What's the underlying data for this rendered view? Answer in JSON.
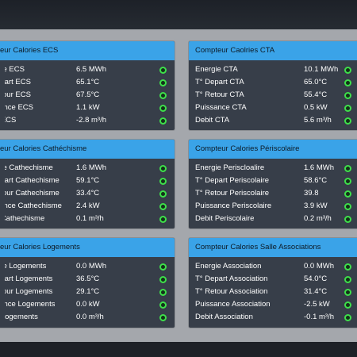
{
  "colors": {
    "header": "#3aa3e8",
    "panel_bg": "#373e49",
    "status_ok": "#3ee04a"
  },
  "panels": [
    {
      "title": "Compteur Calories ECS",
      "rows": [
        {
          "label": "Energie ECS",
          "value": "6.5 MWh"
        },
        {
          "label": "T° Depart ECS",
          "value": "65.1°C"
        },
        {
          "label": "T° Retour ECS",
          "value": "67.5°C"
        },
        {
          "label": "Puissance ECS",
          "value": "1.1 kW"
        },
        {
          "label": "Debit ECS",
          "value": "-2.8 m³/h"
        }
      ]
    },
    {
      "title": "Compteur Caolries CTA",
      "rows": [
        {
          "label": "Energie CTA",
          "value": "10.1 MWh"
        },
        {
          "label": "T° Depart CTA",
          "value": "65.0°C"
        },
        {
          "label": "T° Retour CTA",
          "value": "55.4°C"
        },
        {
          "label": "Puissance CTA",
          "value": "0.5 kW"
        },
        {
          "label": "Debit CTA",
          "value": "5.6 m³/h"
        }
      ]
    },
    {
      "title": "Compteur Calories Cathéchisme",
      "rows": [
        {
          "label": "Energie Cathechisme",
          "value": "1.6 MWh"
        },
        {
          "label": "T° Depart Cathechisme",
          "value": "59.1°C"
        },
        {
          "label": "T° Retour Cathechisme",
          "value": "33.4°C"
        },
        {
          "label": "Puissance Cathechisme",
          "value": "2.4 kW"
        },
        {
          "label": "Debit Cathechisme",
          "value": "0.1 m³/h"
        }
      ]
    },
    {
      "title": "Compteur Calories Périscolaire",
      "rows": [
        {
          "label": "Energie Periscloalire",
          "value": "1.6 MWh"
        },
        {
          "label": "T° Depart Periscolaire",
          "value": "58.6°C"
        },
        {
          "label": "T° Retour Periscolaire",
          "value": "39.8"
        },
        {
          "label": "Puissance Periscolaire",
          "value": "3.9 kW"
        },
        {
          "label": "Debit Periscolaire",
          "value": "0.2 m³/h"
        }
      ]
    },
    {
      "title": "Compteur Calories Logements",
      "rows": [
        {
          "label": "Energie Logements",
          "value": "0.0 MWh"
        },
        {
          "label": "T° Depart Logements",
          "value": "36.5°C"
        },
        {
          "label": "T° Retour Logements",
          "value": "29.1°C"
        },
        {
          "label": "Puissance Logements",
          "value": "0.0 kW"
        },
        {
          "label": "Debit Logements",
          "value": "0.0 m³/h"
        }
      ]
    },
    {
      "title": "Compteur Calories Salle Associations",
      "rows": [
        {
          "label": "Energie Association",
          "value": "0.0 MWh"
        },
        {
          "label": "T° Depart Association",
          "value": "54.0°C"
        },
        {
          "label": "T° Retour Association",
          "value": "31.4°C"
        },
        {
          "label": "Puissance Association",
          "value": "-2.5 kW"
        },
        {
          "label": "Debit Association",
          "value": "-0.1 m³/h"
        }
      ]
    }
  ]
}
